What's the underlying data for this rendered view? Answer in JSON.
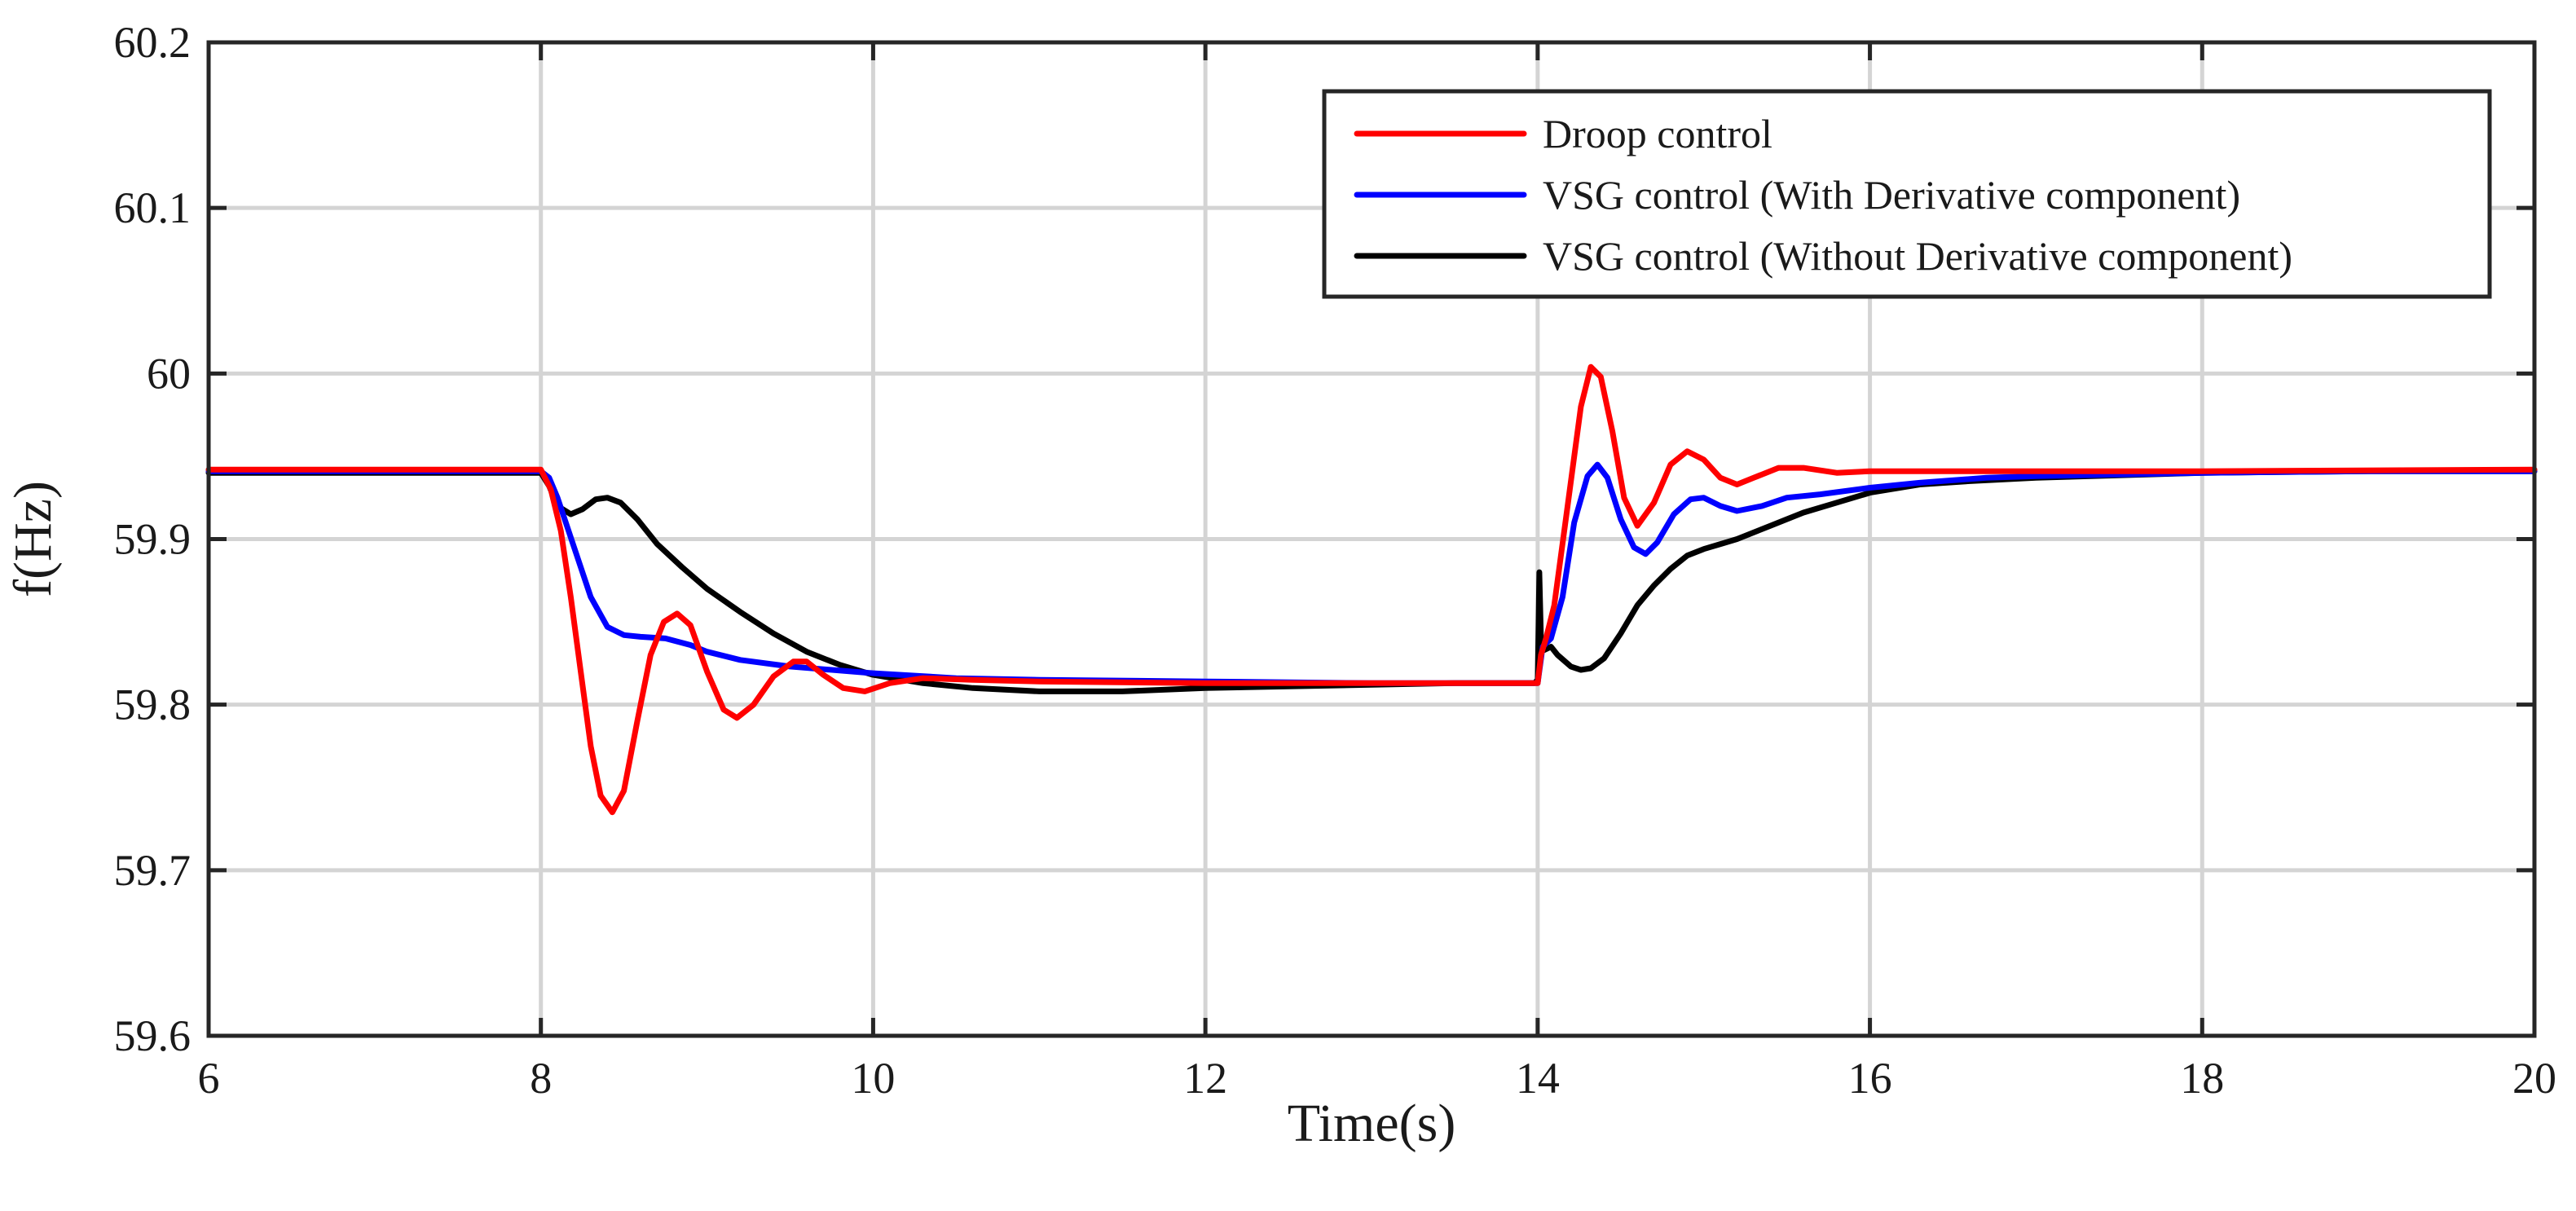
{
  "chart_data": {
    "type": "line",
    "title": "",
    "xlabel": "Time(s)",
    "ylabel": "f(Hz)",
    "xlim": [
      6,
      20
    ],
    "ylim": [
      59.6,
      60.2
    ],
    "xticks": [
      "6",
      "8",
      "10",
      "12",
      "14",
      "16",
      "18",
      "20"
    ],
    "yticks": [
      "59.6",
      "59.7",
      "59.8",
      "59.9",
      "60",
      "60.1",
      "60.2"
    ],
    "xtick_values": [
      6,
      8,
      10,
      12,
      14,
      16,
      18,
      20
    ],
    "ytick_values": [
      59.6,
      59.7,
      59.8,
      59.9,
      60.0,
      60.1,
      60.2
    ],
    "grid": true,
    "legend_position": "top-right",
    "series": [
      {
        "name": "Droop control",
        "color": "#ff0000",
        "points": [
          [
            6.0,
            59.942
          ],
          [
            8.0,
            59.942
          ],
          [
            8.06,
            59.93
          ],
          [
            8.12,
            59.905
          ],
          [
            8.18,
            59.865
          ],
          [
            8.24,
            59.82
          ],
          [
            8.3,
            59.775
          ],
          [
            8.36,
            59.745
          ],
          [
            8.43,
            59.735
          ],
          [
            8.5,
            59.748
          ],
          [
            8.58,
            59.79
          ],
          [
            8.66,
            59.83
          ],
          [
            8.74,
            59.85
          ],
          [
            8.82,
            59.855
          ],
          [
            8.9,
            59.848
          ],
          [
            9.0,
            59.82
          ],
          [
            9.1,
            59.797
          ],
          [
            9.18,
            59.792
          ],
          [
            9.28,
            59.8
          ],
          [
            9.4,
            59.817
          ],
          [
            9.52,
            59.826
          ],
          [
            9.6,
            59.826
          ],
          [
            9.7,
            59.818
          ],
          [
            9.82,
            59.81
          ],
          [
            9.95,
            59.808
          ],
          [
            10.1,
            59.813
          ],
          [
            10.3,
            59.816
          ],
          [
            10.6,
            59.815
          ],
          [
            11.0,
            59.814
          ],
          [
            12.0,
            59.813
          ],
          [
            13.0,
            59.813
          ],
          [
            13.9,
            59.813
          ],
          [
            14.0,
            59.813
          ],
          [
            14.02,
            59.83
          ],
          [
            14.05,
            59.84
          ],
          [
            14.1,
            59.86
          ],
          [
            14.18,
            59.92
          ],
          [
            14.26,
            59.98
          ],
          [
            14.32,
            60.004
          ],
          [
            14.38,
            59.998
          ],
          [
            14.45,
            59.965
          ],
          [
            14.52,
            59.925
          ],
          [
            14.6,
            59.908
          ],
          [
            14.7,
            59.922
          ],
          [
            14.8,
            59.945
          ],
          [
            14.9,
            59.953
          ],
          [
            15.0,
            59.948
          ],
          [
            15.1,
            59.937
          ],
          [
            15.2,
            59.933
          ],
          [
            15.3,
            59.937
          ],
          [
            15.45,
            59.943
          ],
          [
            15.6,
            59.943
          ],
          [
            15.8,
            59.94
          ],
          [
            16.0,
            59.941
          ],
          [
            16.5,
            59.941
          ],
          [
            17.0,
            59.941
          ],
          [
            18.0,
            59.941
          ],
          [
            20.0,
            59.942
          ]
        ]
      },
      {
        "name": "VSG control (With Derivative component)",
        "color": "#0000ff",
        "points": [
          [
            6.0,
            59.941
          ],
          [
            8.0,
            59.941
          ],
          [
            8.05,
            59.937
          ],
          [
            8.1,
            59.925
          ],
          [
            8.2,
            59.895
          ],
          [
            8.3,
            59.865
          ],
          [
            8.4,
            59.847
          ],
          [
            8.5,
            59.842
          ],
          [
            8.6,
            59.841
          ],
          [
            8.75,
            59.84
          ],
          [
            8.9,
            59.836
          ],
          [
            9.0,
            59.832
          ],
          [
            9.2,
            59.827
          ],
          [
            9.5,
            59.823
          ],
          [
            10.0,
            59.819
          ],
          [
            10.5,
            59.816
          ],
          [
            11.0,
            59.815
          ],
          [
            12.0,
            59.814
          ],
          [
            13.0,
            59.813
          ],
          [
            14.0,
            59.813
          ],
          [
            14.03,
            59.835
          ],
          [
            14.08,
            59.84
          ],
          [
            14.15,
            59.865
          ],
          [
            14.22,
            59.91
          ],
          [
            14.3,
            59.938
          ],
          [
            14.36,
            59.945
          ],
          [
            14.42,
            59.937
          ],
          [
            14.5,
            59.912
          ],
          [
            14.58,
            59.895
          ],
          [
            14.65,
            59.891
          ],
          [
            14.72,
            59.898
          ],
          [
            14.82,
            59.915
          ],
          [
            14.92,
            59.924
          ],
          [
            15.0,
            59.925
          ],
          [
            15.1,
            59.92
          ],
          [
            15.2,
            59.917
          ],
          [
            15.35,
            59.92
          ],
          [
            15.5,
            59.925
          ],
          [
            15.7,
            59.927
          ],
          [
            16.0,
            59.931
          ],
          [
            16.3,
            59.934
          ],
          [
            16.7,
            59.937
          ],
          [
            17.0,
            59.938
          ],
          [
            18.0,
            59.94
          ],
          [
            19.0,
            59.941
          ],
          [
            20.0,
            59.941
          ]
        ]
      },
      {
        "name": "VSG control (Without Derivative component)",
        "color": "#000000",
        "points": [
          [
            6.0,
            59.94
          ],
          [
            8.0,
            59.94
          ],
          [
            8.05,
            59.932
          ],
          [
            8.1,
            59.92
          ],
          [
            8.18,
            59.915
          ],
          [
            8.25,
            59.918
          ],
          [
            8.33,
            59.924
          ],
          [
            8.4,
            59.925
          ],
          [
            8.48,
            59.922
          ],
          [
            8.58,
            59.912
          ],
          [
            8.7,
            59.897
          ],
          [
            8.85,
            59.883
          ],
          [
            9.0,
            59.87
          ],
          [
            9.2,
            59.856
          ],
          [
            9.4,
            59.843
          ],
          [
            9.6,
            59.832
          ],
          [
            9.8,
            59.824
          ],
          [
            10.0,
            59.818
          ],
          [
            10.3,
            59.813
          ],
          [
            10.6,
            59.81
          ],
          [
            11.0,
            59.808
          ],
          [
            11.5,
            59.808
          ],
          [
            12.0,
            59.81
          ],
          [
            12.5,
            59.811
          ],
          [
            13.0,
            59.812
          ],
          [
            13.5,
            59.813
          ],
          [
            13.98,
            59.813
          ],
          [
            14.0,
            59.815
          ],
          [
            14.01,
            59.88
          ],
          [
            14.02,
            59.84
          ],
          [
            14.04,
            59.833
          ],
          [
            14.08,
            59.835
          ],
          [
            14.12,
            59.83
          ],
          [
            14.2,
            59.823
          ],
          [
            14.26,
            59.821
          ],
          [
            14.32,
            59.822
          ],
          [
            14.4,
            59.828
          ],
          [
            14.5,
            59.843
          ],
          [
            14.6,
            59.86
          ],
          [
            14.7,
            59.872
          ],
          [
            14.8,
            59.882
          ],
          [
            14.9,
            59.89
          ],
          [
            15.0,
            59.894
          ],
          [
            15.1,
            59.897
          ],
          [
            15.2,
            59.9
          ],
          [
            15.4,
            59.908
          ],
          [
            15.6,
            59.916
          ],
          [
            15.8,
            59.922
          ],
          [
            16.0,
            59.928
          ],
          [
            16.3,
            59.933
          ],
          [
            16.6,
            59.935
          ],
          [
            17.0,
            59.937
          ],
          [
            18.0,
            59.94
          ],
          [
            19.0,
            59.941
          ],
          [
            20.0,
            59.941
          ]
        ]
      }
    ]
  }
}
